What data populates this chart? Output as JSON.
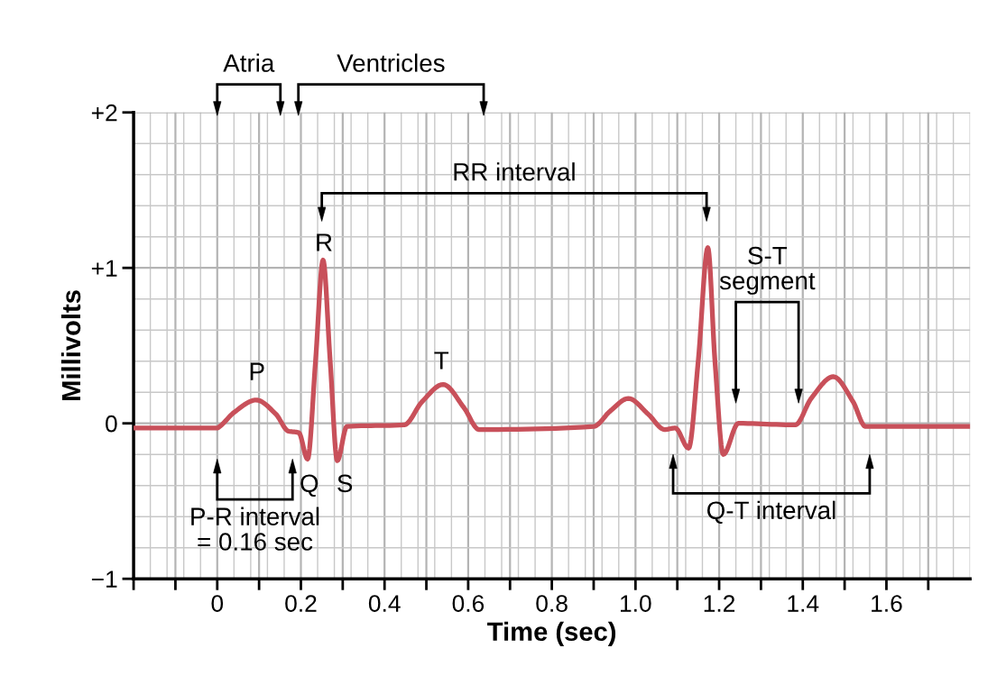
{
  "chart_data": {
    "type": "line",
    "xlabel": "Time (sec)",
    "ylabel": "Millivolts",
    "x": [
      -0.2,
      0.0,
      0.006,
      0.04,
      0.093,
      0.14,
      0.17,
      0.195,
      0.216,
      0.235,
      0.253,
      0.27,
      0.287,
      0.31,
      0.447,
      0.49,
      0.54,
      0.59,
      0.626,
      0.9,
      0.94,
      0.983,
      1.03,
      1.07,
      1.095,
      1.127,
      1.15,
      1.173,
      1.19,
      1.21,
      1.246,
      1.382,
      1.42,
      1.473,
      1.52,
      1.55,
      1.8
    ],
    "series": [
      {
        "color": "#c8505a",
        "values": [
          -0.03,
          -0.03,
          -0.02,
          0.07,
          0.15,
          0.06,
          -0.05,
          -0.06,
          -0.23,
          0.4,
          1.05,
          0.4,
          -0.24,
          -0.02,
          -0.01,
          0.14,
          0.25,
          0.1,
          -0.04,
          -0.02,
          0.08,
          0.16,
          0.06,
          -0.04,
          -0.03,
          -0.16,
          0.4,
          1.13,
          0.4,
          -0.2,
          0.0,
          -0.01,
          0.16,
          0.3,
          0.14,
          -0.02,
          -0.02
        ]
      }
    ],
    "xlim": [
      -0.2,
      1.8
    ],
    "ylim": [
      -1,
      2
    ],
    "xticks": [
      {
        "value": -0.2,
        "label": null
      },
      {
        "value": -0.1,
        "label": null
      },
      0,
      {
        "value": 0.1,
        "label": null
      },
      0.2,
      {
        "value": 0.3,
        "label": null
      },
      0.4,
      {
        "value": 0.5,
        "label": null
      },
      0.6,
      {
        "value": 0.7,
        "label": null
      },
      0.8,
      {
        "value": 0.9,
        "label": null
      },
      {
        "value": 1.0,
        "label": "1.0"
      },
      {
        "value": 1.1,
        "label": null
      },
      1.2,
      {
        "value": 1.3,
        "label": null
      },
      1.4,
      {
        "value": 1.5,
        "label": null
      },
      1.6,
      {
        "value": 1.7,
        "label": null
      }
    ],
    "yticks": [
      {
        "value": -1,
        "label": "−1"
      },
      0,
      {
        "value": 1,
        "label": "+1"
      },
      {
        "value": 2,
        "label": "+2"
      }
    ],
    "grid": true,
    "legend": false,
    "marker": "none",
    "line_style": "solid",
    "annotations": [
      "P",
      "R",
      "T",
      "Q",
      "S",
      "Atria",
      "Ventricles",
      "RR interval",
      "S-T\nsegment",
      "P-R interval\n= 0.16 sec",
      "Q-T interval"
    ]
  }
}
